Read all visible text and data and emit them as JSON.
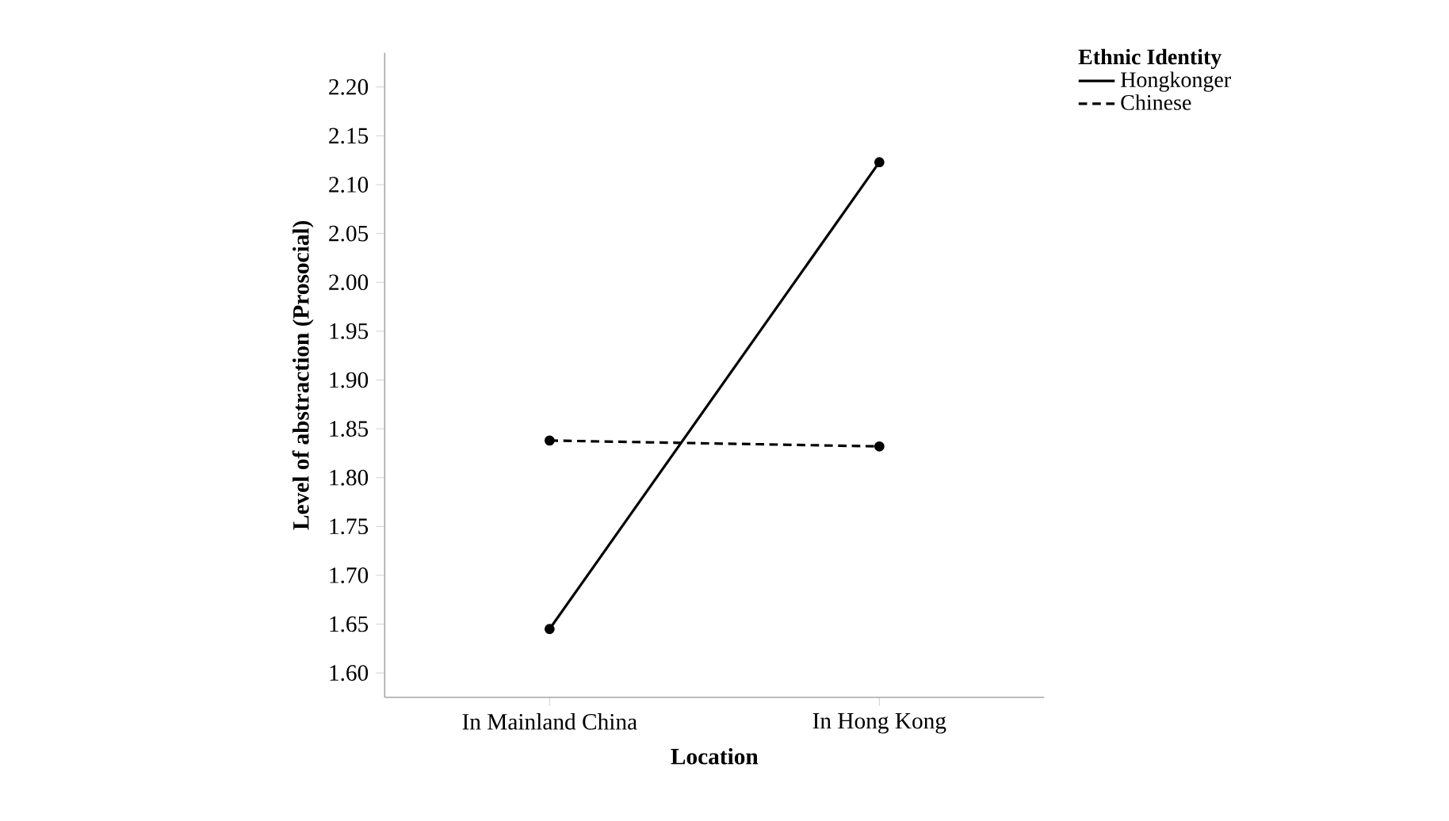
{
  "chart_data": {
    "type": "line",
    "xlabel": "Location",
    "ylabel": "Level of abstraction (Prosocial)",
    "legend_title": "Ethnic Identity",
    "categories": [
      "In Mainland China",
      "In Hong Kong"
    ],
    "series": [
      {
        "name": "Hongkonger",
        "color": "#000000",
        "values": [
          1.645,
          2.123
        ],
        "line_style": "solid"
      },
      {
        "name": "Chinese",
        "color": "#000000",
        "values": [
          1.838,
          1.832
        ],
        "line_style": "dashed"
      }
    ],
    "ylim": [
      1.575,
      2.235
    ],
    "yticks": [
      {
        "value": 1.6,
        "label": "1.60"
      },
      {
        "value": 1.65,
        "label": "1.65"
      },
      {
        "value": 1.7,
        "label": "1.70"
      },
      {
        "value": 1.75,
        "label": "1.75"
      },
      {
        "value": 1.8,
        "label": "1.80"
      },
      {
        "value": 1.85,
        "label": "1.85"
      },
      {
        "value": 1.9,
        "label": "1.90"
      },
      {
        "value": 1.95,
        "label": "1.95"
      },
      {
        "value": 2.0,
        "label": "2.00"
      },
      {
        "value": 2.05,
        "label": "2.05"
      },
      {
        "value": 2.1,
        "label": "2.10"
      },
      {
        "value": 2.15,
        "label": "2.15"
      },
      {
        "value": 2.2,
        "label": "2.20"
      }
    ],
    "grid": false,
    "legend": "top right",
    "marker": "circle"
  }
}
